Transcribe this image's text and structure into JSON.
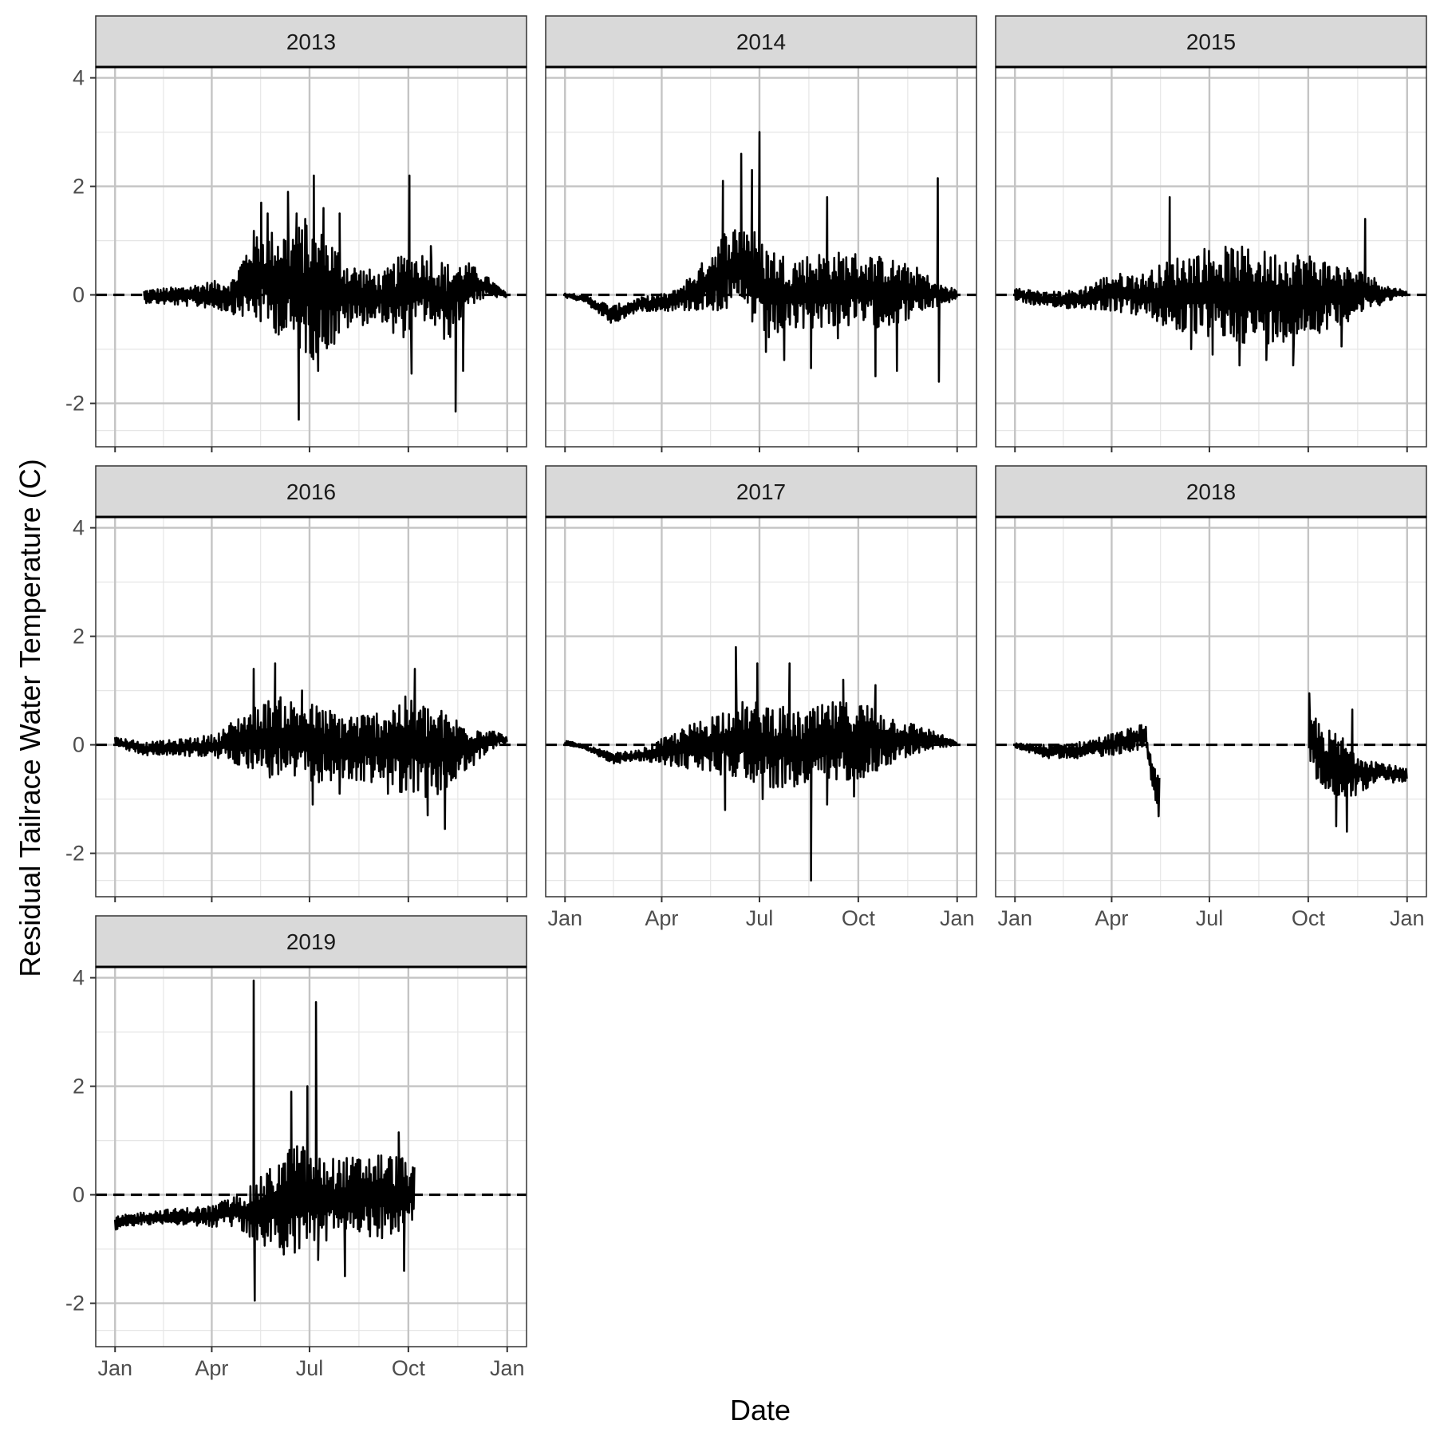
{
  "chart_data": {
    "type": "line",
    "xlabel": "Date",
    "ylabel": "Residual Tailrace Water Temperature (C)",
    "x_unit": "day of year",
    "x_ticks": [
      {
        "label": "Jan",
        "day": 1
      },
      {
        "label": "Apr",
        "day": 91
      },
      {
        "label": "Jul",
        "day": 182
      },
      {
        "label": "Oct",
        "day": 274
      },
      {
        "label": "Jan",
        "day": 366
      }
    ],
    "y_ticks": [
      -2,
      0,
      2,
      4
    ],
    "ylim": [
      -2.8,
      4.2
    ],
    "xlim": [
      -17,
      384
    ],
    "reference_line": {
      "y": 0,
      "style": "dashed"
    },
    "grid": true,
    "colors": {
      "line": "#000000",
      "strip_fill": "#d9d9d9",
      "grid_major": "#c4c4c4",
      "grid_minor": "#e6e6e6",
      "panel_border": "#333333"
    },
    "panels": [
      {
        "name": "2013",
        "envelope": [
          {
            "x": 28,
            "upper": 0.1,
            "lower": -0.15
          },
          {
            "x": 60,
            "upper": 0.15,
            "lower": -0.2
          },
          {
            "x": 90,
            "upper": 0.25,
            "lower": -0.25
          },
          {
            "x": 110,
            "upper": 0.3,
            "lower": -0.35
          },
          {
            "x": 130,
            "upper": 1.2,
            "lower": -0.5
          },
          {
            "x": 150,
            "upper": 1.2,
            "lower": -0.7
          },
          {
            "x": 170,
            "upper": 1.3,
            "lower": -1.0
          },
          {
            "x": 185,
            "upper": 1.3,
            "lower": -1.2
          },
          {
            "x": 200,
            "upper": 1.1,
            "lower": -1.0
          },
          {
            "x": 220,
            "upper": 0.6,
            "lower": -0.6
          },
          {
            "x": 250,
            "upper": 0.4,
            "lower": -0.5
          },
          {
            "x": 270,
            "upper": 0.8,
            "lower": -0.8
          },
          {
            "x": 290,
            "upper": 0.8,
            "lower": -0.5
          },
          {
            "x": 310,
            "upper": 0.6,
            "lower": -0.9
          },
          {
            "x": 330,
            "upper": 0.6,
            "lower": -0.2
          },
          {
            "x": 350,
            "upper": 0.3,
            "lower": -0.05
          },
          {
            "x": 366,
            "upper": 0.02,
            "lower": -0.05
          }
        ],
        "spikes": [
          {
            "x": 137,
            "y": 1.7
          },
          {
            "x": 143,
            "y": 1.5
          },
          {
            "x": 158,
            "y": -0.6
          },
          {
            "x": 162,
            "y": 1.9
          },
          {
            "x": 170,
            "y": 1.5
          },
          {
            "x": 172,
            "y": -2.3
          },
          {
            "x": 178,
            "y": 1.4
          },
          {
            "x": 186,
            "y": 2.2
          },
          {
            "x": 190,
            "y": -1.4
          },
          {
            "x": 195,
            "y": 1.6
          },
          {
            "x": 205,
            "y": -0.9
          },
          {
            "x": 210,
            "y": 1.5
          },
          {
            "x": 260,
            "y": -0.7
          },
          {
            "x": 275,
            "y": 2.2
          },
          {
            "x": 277,
            "y": -1.45
          },
          {
            "x": 295,
            "y": 0.9
          },
          {
            "x": 318,
            "y": -2.15
          },
          {
            "x": 325,
            "y": -1.4
          }
        ]
      },
      {
        "name": "2014",
        "envelope": [
          {
            "x": 1,
            "upper": 0.05,
            "lower": -0.05
          },
          {
            "x": 20,
            "upper": 0.0,
            "lower": -0.15
          },
          {
            "x": 45,
            "upper": -0.2,
            "lower": -0.55
          },
          {
            "x": 70,
            "upper": -0.05,
            "lower": -0.3
          },
          {
            "x": 100,
            "upper": 0.05,
            "lower": -0.3
          },
          {
            "x": 125,
            "upper": 0.5,
            "lower": -0.3
          },
          {
            "x": 150,
            "upper": 1.2,
            "lower": -0.3
          },
          {
            "x": 170,
            "upper": 1.4,
            "lower": -0.4
          },
          {
            "x": 185,
            "upper": 1.0,
            "lower": -0.9
          },
          {
            "x": 210,
            "upper": 0.7,
            "lower": -0.7
          },
          {
            "x": 240,
            "upper": 0.8,
            "lower": -0.6
          },
          {
            "x": 270,
            "upper": 0.8,
            "lower": -0.6
          },
          {
            "x": 300,
            "upper": 0.7,
            "lower": -0.6
          },
          {
            "x": 330,
            "upper": 0.5,
            "lower": -0.4
          },
          {
            "x": 350,
            "upper": 0.2,
            "lower": -0.2
          },
          {
            "x": 366,
            "upper": 0.1,
            "lower": -0.1
          }
        ],
        "spikes": [
          {
            "x": 148,
            "y": 2.1
          },
          {
            "x": 165,
            "y": 2.6
          },
          {
            "x": 175,
            "y": 2.3
          },
          {
            "x": 182,
            "y": 3.0
          },
          {
            "x": 188,
            "y": -1.05
          },
          {
            "x": 205,
            "y": -1.2
          },
          {
            "x": 230,
            "y": -1.35
          },
          {
            "x": 245,
            "y": 1.8
          },
          {
            "x": 255,
            "y": -0.8
          },
          {
            "x": 290,
            "y": -1.5
          },
          {
            "x": 310,
            "y": -1.4
          },
          {
            "x": 348,
            "y": 2.15
          },
          {
            "x": 349,
            "y": -1.6
          }
        ]
      },
      {
        "name": "2015",
        "envelope": [
          {
            "x": 1,
            "upper": 0.15,
            "lower": -0.1
          },
          {
            "x": 30,
            "upper": 0.05,
            "lower": -0.25
          },
          {
            "x": 60,
            "upper": 0.1,
            "lower": -0.25
          },
          {
            "x": 90,
            "upper": 0.4,
            "lower": -0.3
          },
          {
            "x": 120,
            "upper": 0.4,
            "lower": -0.4
          },
          {
            "x": 150,
            "upper": 0.7,
            "lower": -0.7
          },
          {
            "x": 180,
            "upper": 0.9,
            "lower": -0.8
          },
          {
            "x": 210,
            "upper": 0.9,
            "lower": -0.9
          },
          {
            "x": 240,
            "upper": 0.8,
            "lower": -0.9
          },
          {
            "x": 270,
            "upper": 0.8,
            "lower": -0.8
          },
          {
            "x": 300,
            "upper": 0.6,
            "lower": -0.6
          },
          {
            "x": 330,
            "upper": 0.4,
            "lower": -0.3
          },
          {
            "x": 350,
            "upper": 0.15,
            "lower": -0.1
          },
          {
            "x": 366,
            "upper": 0.08,
            "lower": 0.0
          }
        ],
        "spikes": [
          {
            "x": 145,
            "y": 1.8
          },
          {
            "x": 165,
            "y": -1.0
          },
          {
            "x": 185,
            "y": -1.1
          },
          {
            "x": 210,
            "y": -1.3
          },
          {
            "x": 235,
            "y": -1.2
          },
          {
            "x": 260,
            "y": -1.3
          },
          {
            "x": 305,
            "y": -0.95
          },
          {
            "x": 327,
            "y": 1.4
          }
        ]
      },
      {
        "name": "2016",
        "envelope": [
          {
            "x": 1,
            "upper": 0.15,
            "lower": -0.05
          },
          {
            "x": 30,
            "upper": 0.05,
            "lower": -0.2
          },
          {
            "x": 60,
            "upper": 0.1,
            "lower": -0.2
          },
          {
            "x": 95,
            "upper": 0.2,
            "lower": -0.25
          },
          {
            "x": 120,
            "upper": 0.6,
            "lower": -0.4
          },
          {
            "x": 150,
            "upper": 0.9,
            "lower": -0.6
          },
          {
            "x": 180,
            "upper": 0.8,
            "lower": -0.7
          },
          {
            "x": 210,
            "upper": 0.6,
            "lower": -0.7
          },
          {
            "x": 240,
            "upper": 0.6,
            "lower": -0.7
          },
          {
            "x": 270,
            "upper": 0.9,
            "lower": -0.9
          },
          {
            "x": 300,
            "upper": 0.7,
            "lower": -1.0
          },
          {
            "x": 330,
            "upper": 0.4,
            "lower": -0.5
          },
          {
            "x": 350,
            "upper": 0.3,
            "lower": -0.1
          },
          {
            "x": 366,
            "upper": 0.15,
            "lower": 0.05
          }
        ],
        "spikes": [
          {
            "x": 130,
            "y": 1.4
          },
          {
            "x": 145,
            "y": -0.6
          },
          {
            "x": 150,
            "y": 1.5
          },
          {
            "x": 175,
            "y": 1.0
          },
          {
            "x": 185,
            "y": -1.1
          },
          {
            "x": 210,
            "y": -0.9
          },
          {
            "x": 255,
            "y": -0.9
          },
          {
            "x": 280,
            "y": 1.4
          },
          {
            "x": 292,
            "y": -1.3
          },
          {
            "x": 308,
            "y": -1.55
          }
        ]
      },
      {
        "name": "2017",
        "envelope": [
          {
            "x": 1,
            "upper": 0.08,
            "lower": 0.0
          },
          {
            "x": 20,
            "upper": 0.0,
            "lower": -0.1
          },
          {
            "x": 45,
            "upper": -0.15,
            "lower": -0.35
          },
          {
            "x": 70,
            "upper": -0.1,
            "lower": -0.3
          },
          {
            "x": 100,
            "upper": 0.2,
            "lower": -0.4
          },
          {
            "x": 130,
            "upper": 0.5,
            "lower": -0.5
          },
          {
            "x": 160,
            "upper": 0.8,
            "lower": -0.6
          },
          {
            "x": 190,
            "upper": 0.8,
            "lower": -0.8
          },
          {
            "x": 220,
            "upper": 0.6,
            "lower": -0.8
          },
          {
            "x": 250,
            "upper": 0.8,
            "lower": -0.7
          },
          {
            "x": 280,
            "upper": 0.8,
            "lower": -0.6
          },
          {
            "x": 310,
            "upper": 0.5,
            "lower": -0.3
          },
          {
            "x": 340,
            "upper": 0.3,
            "lower": -0.1
          },
          {
            "x": 366,
            "upper": 0.05,
            "lower": 0.0
          }
        ],
        "spikes": [
          {
            "x": 150,
            "y": -1.2
          },
          {
            "x": 160,
            "y": 1.8
          },
          {
            "x": 180,
            "y": 1.5
          },
          {
            "x": 185,
            "y": -1.0
          },
          {
            "x": 210,
            "y": 1.5
          },
          {
            "x": 230,
            "y": -2.5
          },
          {
            "x": 245,
            "y": -1.1
          },
          {
            "x": 260,
            "y": 1.2
          },
          {
            "x": 270,
            "y": -0.95
          },
          {
            "x": 290,
            "y": 1.1
          }
        ]
      },
      {
        "name": "2018",
        "envelope": [
          {
            "x": 1,
            "upper": 0.03,
            "lower": -0.05
          },
          {
            "x": 30,
            "upper": 0.0,
            "lower": -0.25
          },
          {
            "x": 60,
            "upper": 0.05,
            "lower": -0.25
          },
          {
            "x": 90,
            "upper": 0.2,
            "lower": -0.2
          },
          {
            "x": 115,
            "upper": 0.35,
            "lower": -0.1
          },
          {
            "x": 122,
            "upper": 0.45,
            "lower": 0.0
          },
          {
            "x": 128,
            "upper": -0.3,
            "lower": -0.7
          },
          {
            "x": 135,
            "upper": -0.6,
            "lower": -1.5
          },
          {
            "x": 275,
            "upper": 0.7,
            "lower": -0.4
          },
          {
            "x": 290,
            "upper": 0.3,
            "lower": -0.9
          },
          {
            "x": 305,
            "upper": 0.2,
            "lower": -1.2
          },
          {
            "x": 320,
            "upper": -0.1,
            "lower": -0.9
          },
          {
            "x": 340,
            "upper": -0.3,
            "lower": -0.7
          },
          {
            "x": 366,
            "upper": -0.45,
            "lower": -0.7
          }
        ],
        "gap": [
          136,
          274
        ],
        "spikes": [
          {
            "x": 275,
            "y": 0.95
          },
          {
            "x": 300,
            "y": -1.5
          },
          {
            "x": 310,
            "y": -1.6
          },
          {
            "x": 315,
            "y": 0.65
          }
        ]
      },
      {
        "name": "2019",
        "envelope": [
          {
            "x": 1,
            "upper": -0.4,
            "lower": -0.65
          },
          {
            "x": 30,
            "upper": -0.3,
            "lower": -0.55
          },
          {
            "x": 60,
            "upper": -0.25,
            "lower": -0.55
          },
          {
            "x": 90,
            "upper": -0.2,
            "lower": -0.6
          },
          {
            "x": 115,
            "upper": 0.0,
            "lower": -0.6
          },
          {
            "x": 130,
            "upper": 0.2,
            "lower": -0.9
          },
          {
            "x": 150,
            "upper": 0.6,
            "lower": -1.0
          },
          {
            "x": 170,
            "upper": 1.0,
            "lower": -1.1
          },
          {
            "x": 190,
            "upper": 0.7,
            "lower": -0.9
          },
          {
            "x": 220,
            "upper": 0.7,
            "lower": -0.8
          },
          {
            "x": 250,
            "upper": 0.8,
            "lower": -0.8
          },
          {
            "x": 270,
            "upper": 0.7,
            "lower": -0.8
          },
          {
            "x": 280,
            "upper": 0.5,
            "lower": -0.4
          }
        ],
        "spikes": [
          {
            "x": 130,
            "y": 3.95
          },
          {
            "x": 131,
            "y": -1.95
          },
          {
            "x": 158,
            "y": -1.1
          },
          {
            "x": 165,
            "y": 1.9
          },
          {
            "x": 180,
            "y": 2.0
          },
          {
            "x": 188,
            "y": 3.55
          },
          {
            "x": 190,
            "y": -1.2
          },
          {
            "x": 215,
            "y": -1.5
          },
          {
            "x": 265,
            "y": 1.15
          },
          {
            "x": 270,
            "y": -1.4
          }
        ]
      }
    ]
  }
}
